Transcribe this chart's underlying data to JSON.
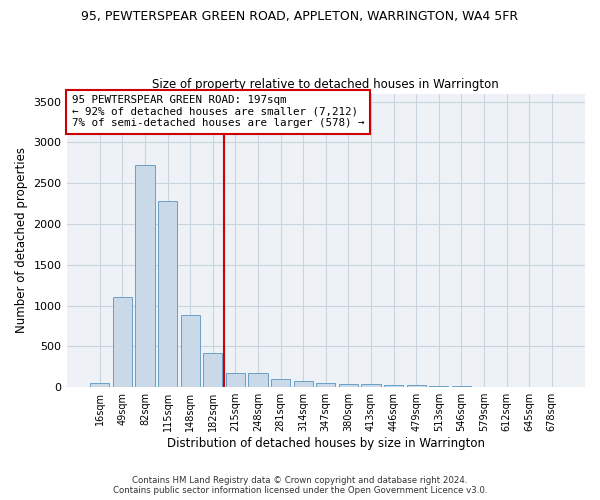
{
  "title": "95, PEWTERSPEAR GREEN ROAD, APPLETON, WARRINGTON, WA4 5FR",
  "subtitle": "Size of property relative to detached houses in Warrington",
  "xlabel": "Distribution of detached houses by size in Warrington",
  "ylabel": "Number of detached properties",
  "bar_color": "#c9d9e8",
  "bar_edge_color": "#6aa0c7",
  "categories": [
    "16sqm",
    "49sqm",
    "82sqm",
    "115sqm",
    "148sqm",
    "182sqm",
    "215sqm",
    "248sqm",
    "281sqm",
    "314sqm",
    "347sqm",
    "380sqm",
    "413sqm",
    "446sqm",
    "479sqm",
    "513sqm",
    "546sqm",
    "579sqm",
    "612sqm",
    "645sqm",
    "678sqm"
  ],
  "values": [
    55,
    1100,
    2720,
    2280,
    880,
    415,
    175,
    170,
    100,
    70,
    55,
    40,
    35,
    25,
    22,
    18,
    10,
    8,
    5,
    3,
    2
  ],
  "ylim": [
    0,
    3600
  ],
  "yticks": [
    0,
    500,
    1000,
    1500,
    2000,
    2500,
    3000,
    3500
  ],
  "vline_color": "#cc0000",
  "annotation_line1": "95 PEWTERSPEAR GREEN ROAD: 197sqm",
  "annotation_line2": "← 92% of detached houses are smaller (7,212)",
  "annotation_line3": "7% of semi-detached houses are larger (578) →",
  "footer1": "Contains HM Land Registry data © Crown copyright and database right 2024.",
  "footer2": "Contains public sector information licensed under the Open Government Licence v3.0.",
  "bg_color": "#eef2f7",
  "grid_color": "#c8d4e0"
}
